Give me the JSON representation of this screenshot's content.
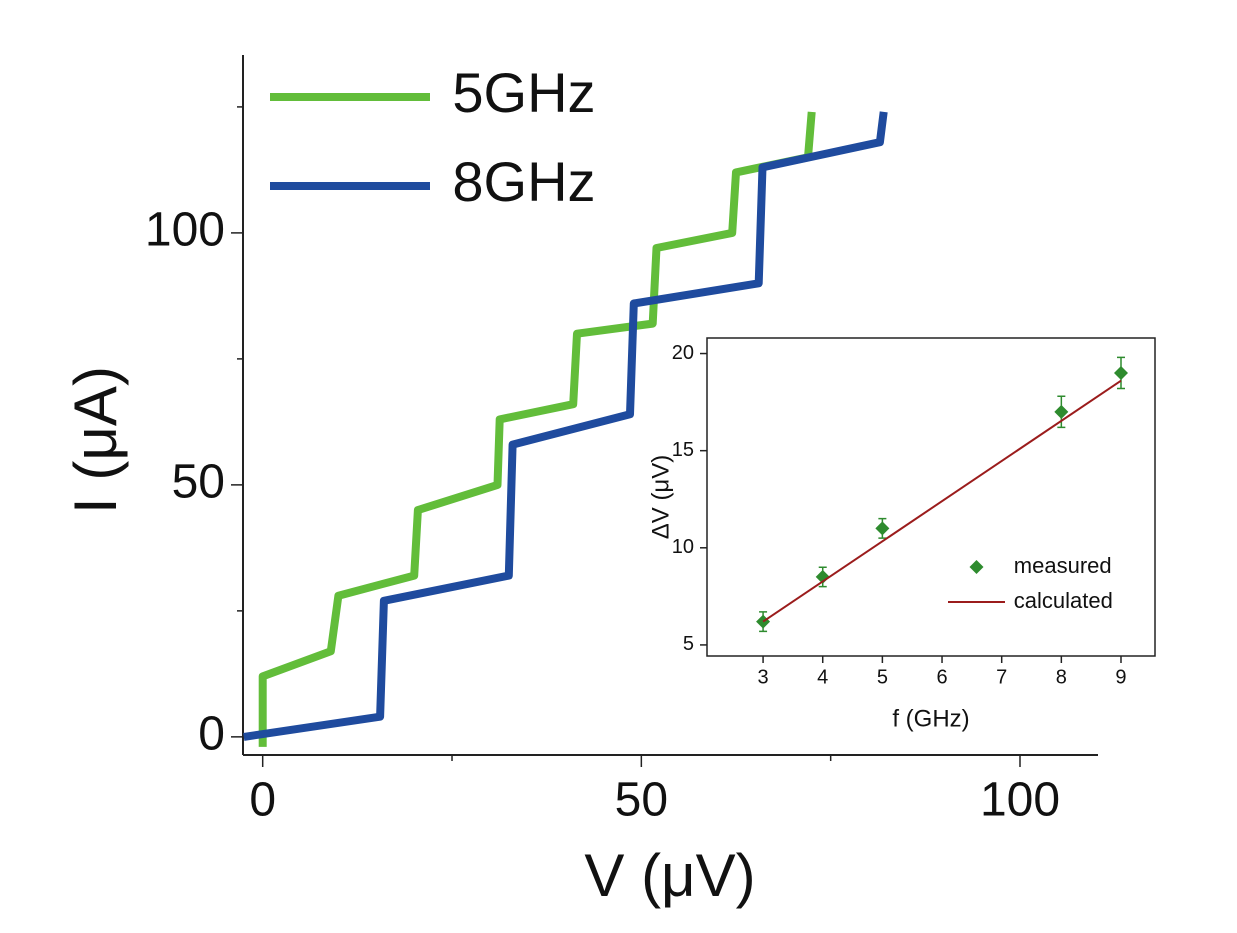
{
  "chart_data": [
    {
      "type": "line",
      "xlabel": "V (μV)",
      "ylabel": "I (μA)",
      "xlim": [
        -2.6,
        110.3
      ],
      "ylim": [
        -3.6,
        135.3
      ],
      "xticks": [
        0,
        50,
        100
      ],
      "yticks": [
        0,
        50,
        100
      ],
      "xminorticks": [
        25,
        75
      ],
      "yminorticks": [
        25,
        75,
        125
      ],
      "legend": "top-left",
      "series": [
        {
          "name": "5GHz",
          "color": "#62bd3a",
          "x": [
            0,
            0,
            9,
            10,
            20,
            20.5,
            31,
            31.3,
            41,
            41.5,
            51.5,
            52,
            62,
            62.5,
            72,
            72.5
          ],
          "values": [
            -2,
            12,
            17,
            28,
            32,
            45,
            50,
            63,
            66,
            80,
            82,
            97,
            100,
            112,
            115,
            124
          ]
        },
        {
          "name": "8GHz",
          "color": "#1f4b9e",
          "x": [
            -2.5,
            15.5,
            16,
            32.5,
            33,
            48.5,
            49,
            65.5,
            66,
            81.5,
            82
          ],
          "values": [
            0,
            4,
            27,
            32,
            58,
            64,
            86,
            90,
            113,
            118,
            124
          ]
        }
      ]
    },
    {
      "type": "scatter",
      "xlabel": "f (GHz)",
      "ylabel": "ΔV (μV)",
      "xlim": [
        2.06,
        9.57
      ],
      "ylim": [
        4.43,
        20.8
      ],
      "xticks": [
        3,
        4,
        5,
        6,
        7,
        8,
        9
      ],
      "yticks": [
        5,
        10,
        15,
        20
      ],
      "legend": "bottom-right",
      "series": [
        {
          "name": "measured",
          "color": "#2e8b2e",
          "style": "marker",
          "x": [
            3,
            4,
            5,
            8,
            9
          ],
          "values": [
            6.2,
            8.5,
            11,
            17,
            19
          ],
          "errors": [
            0.5,
            0.5,
            0.5,
            0.8,
            0.8
          ]
        },
        {
          "name": "calculated",
          "color": "#9b1c1c",
          "style": "line",
          "x": [
            3,
            9
          ],
          "values": [
            6.2,
            18.6
          ]
        }
      ]
    }
  ]
}
